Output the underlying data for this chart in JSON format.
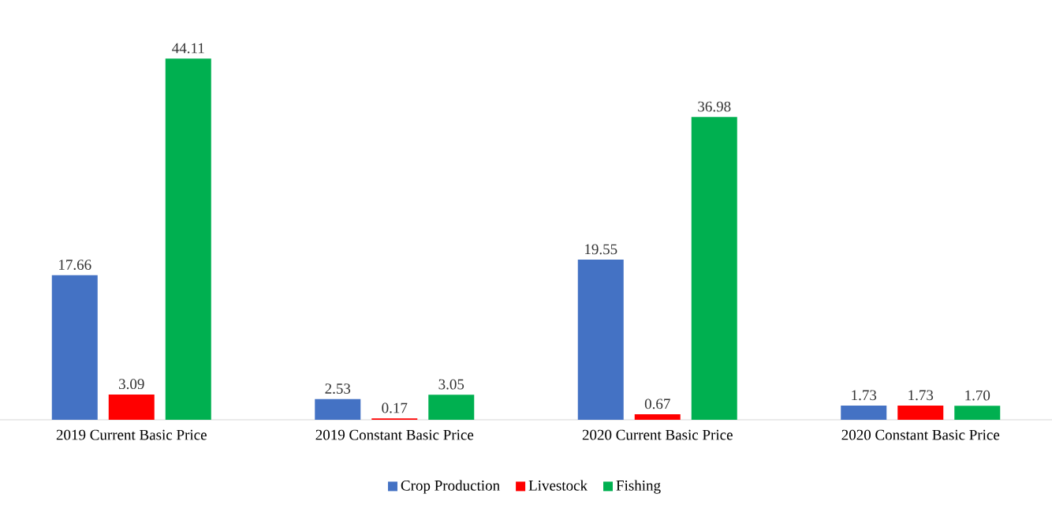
{
  "chart_data": {
    "type": "bar",
    "categories": [
      "2019 Current Basic Price",
      "2019 Constant Basic Price",
      "2020 Current Basic Price",
      "2020 Constant Basic Price"
    ],
    "series": [
      {
        "name": "Crop Production",
        "color": "#4472c4",
        "values": [
          17.66,
          2.53,
          19.55,
          1.73
        ],
        "value_labels": [
          "17.66",
          "2.53",
          "19.55",
          "1.73"
        ]
      },
      {
        "name": "Livestock",
        "color": "#ff0000",
        "values": [
          3.09,
          0.17,
          0.67,
          1.73
        ],
        "value_labels": [
          "3.09",
          "0.17",
          "0.67",
          "1.73"
        ]
      },
      {
        "name": "Fishing",
        "color": "#00b050",
        "values": [
          44.11,
          3.05,
          36.98,
          1.7
        ],
        "value_labels": [
          "44.11",
          "3.05",
          "36.98",
          "1.70"
        ]
      }
    ],
    "legend": "bottom"
  }
}
